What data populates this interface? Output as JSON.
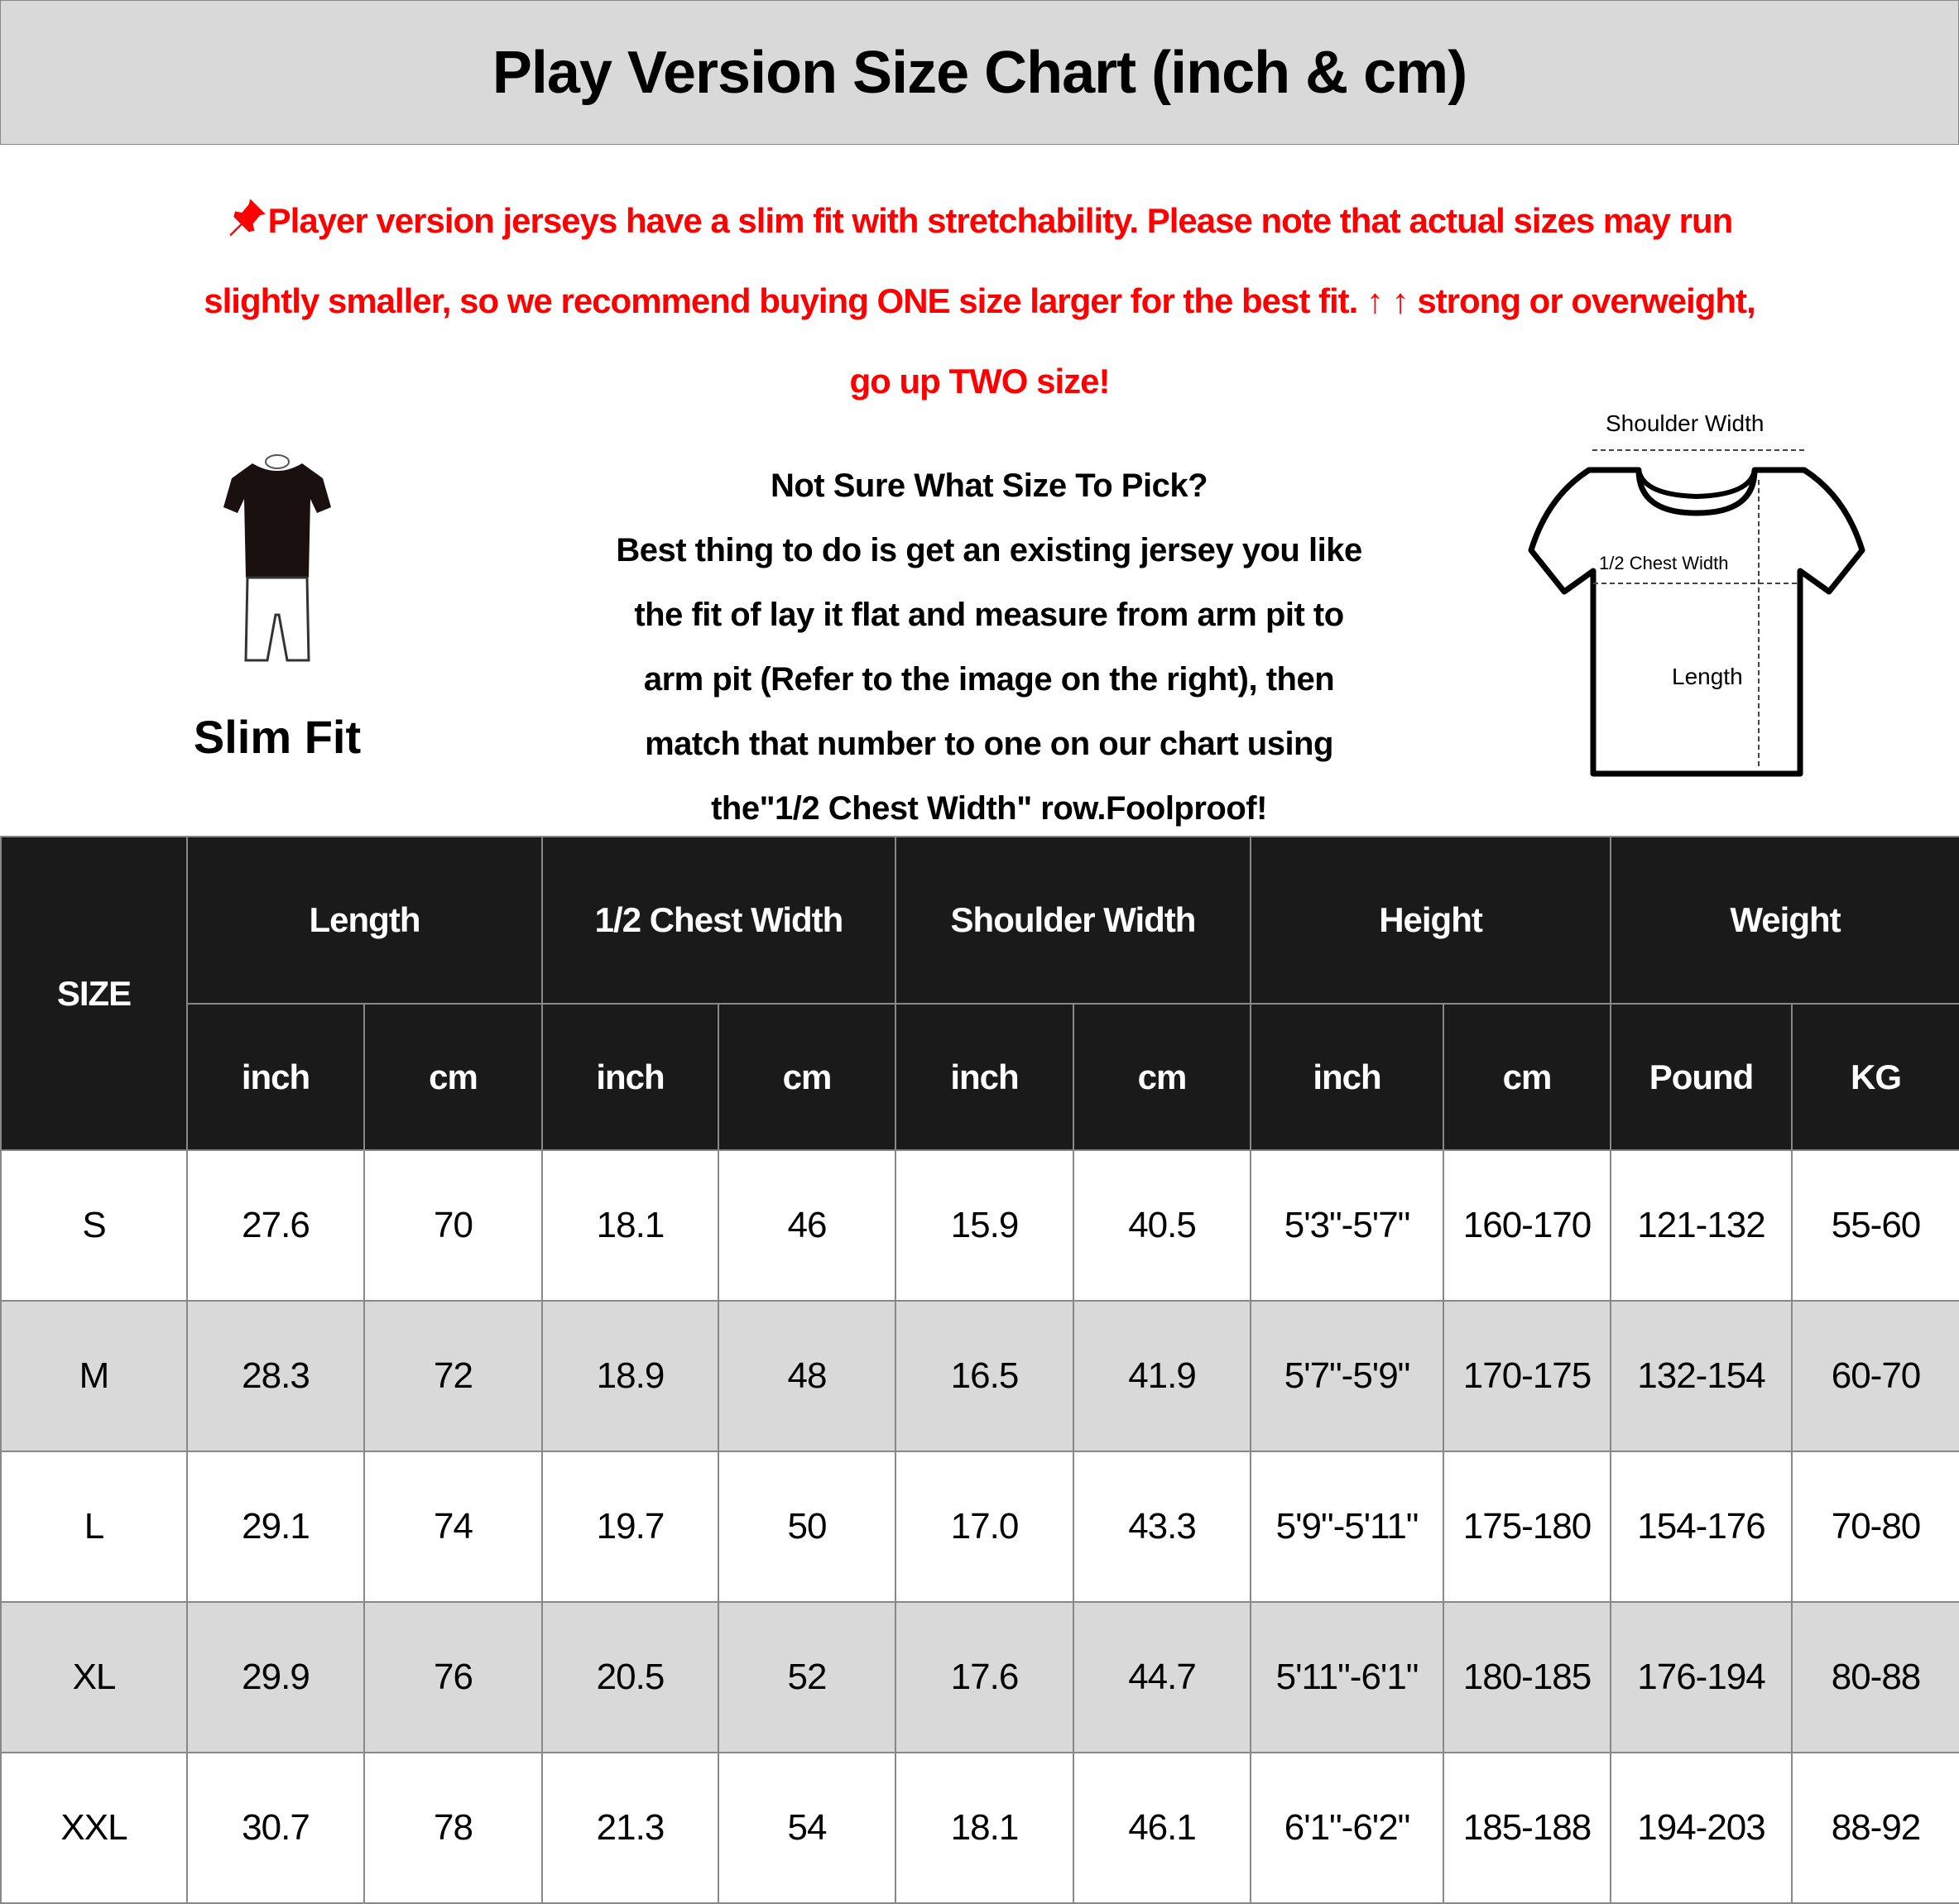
{
  "title": "Play Version Size Chart (inch & cm)",
  "notice": {
    "icon": "pushpin-icon",
    "color": "#ff0000",
    "lines": [
      "Player version jerseys have a slim fit with stretchability. Please note that actual sizes may run",
      "slightly smaller, so we recommend buying ONE size larger for the best fit. ↑ ↑ strong or overweight,",
      "go up TWO size!"
    ]
  },
  "fit": {
    "icon": "slim-fit-figure-icon",
    "label": "Slim Fit"
  },
  "advice": {
    "lines": [
      "Not Sure What Size To Pick?",
      "Best thing to do is get an existing jersey you like",
      "the fit of lay it flat and measure from arm pit to",
      "arm pit (Refer to the image on the right), then",
      "match that number to one on our chart using",
      "the\"1/2 Chest Width\" row.Foolproof!"
    ]
  },
  "diagram": {
    "icon": "tshirt-measurement-icon",
    "shoulder": "Shoulder Width",
    "chest": "1/2 Chest Width",
    "length": "Length"
  },
  "table": {
    "size_header": "SIZE",
    "groups": [
      "Length",
      "1/2 Chest Width",
      "Shoulder Width",
      "Height",
      "Weight"
    ],
    "units": [
      "inch",
      "cm",
      "inch",
      "cm",
      "inch",
      "cm",
      "inch",
      "cm",
      "Pound",
      "KG"
    ],
    "rows": [
      [
        "S",
        "27.6",
        "70",
        "18.1",
        "46",
        "15.9",
        "40.5",
        "5'3\"-5'7\"",
        "160-170",
        "121-132",
        "55-60"
      ],
      [
        "M",
        "28.3",
        "72",
        "18.9",
        "48",
        "16.5",
        "41.9",
        "5'7\"-5'9\"",
        "170-175",
        "132-154",
        "60-70"
      ],
      [
        "L",
        "29.1",
        "74",
        "19.7",
        "50",
        "17.0",
        "43.3",
        "5'9\"-5'11\"",
        "175-180",
        "154-176",
        "70-80"
      ],
      [
        "XL",
        "29.9",
        "76",
        "20.5",
        "52",
        "17.6",
        "44.7",
        "5'11\"-6'1\"",
        "180-185",
        "176-194",
        "80-88"
      ],
      [
        "XXL",
        "30.7",
        "78",
        "21.3",
        "54",
        "18.1",
        "46.1",
        "6'1\"-6'2\"",
        "185-188",
        "194-203",
        "88-92"
      ]
    ]
  }
}
